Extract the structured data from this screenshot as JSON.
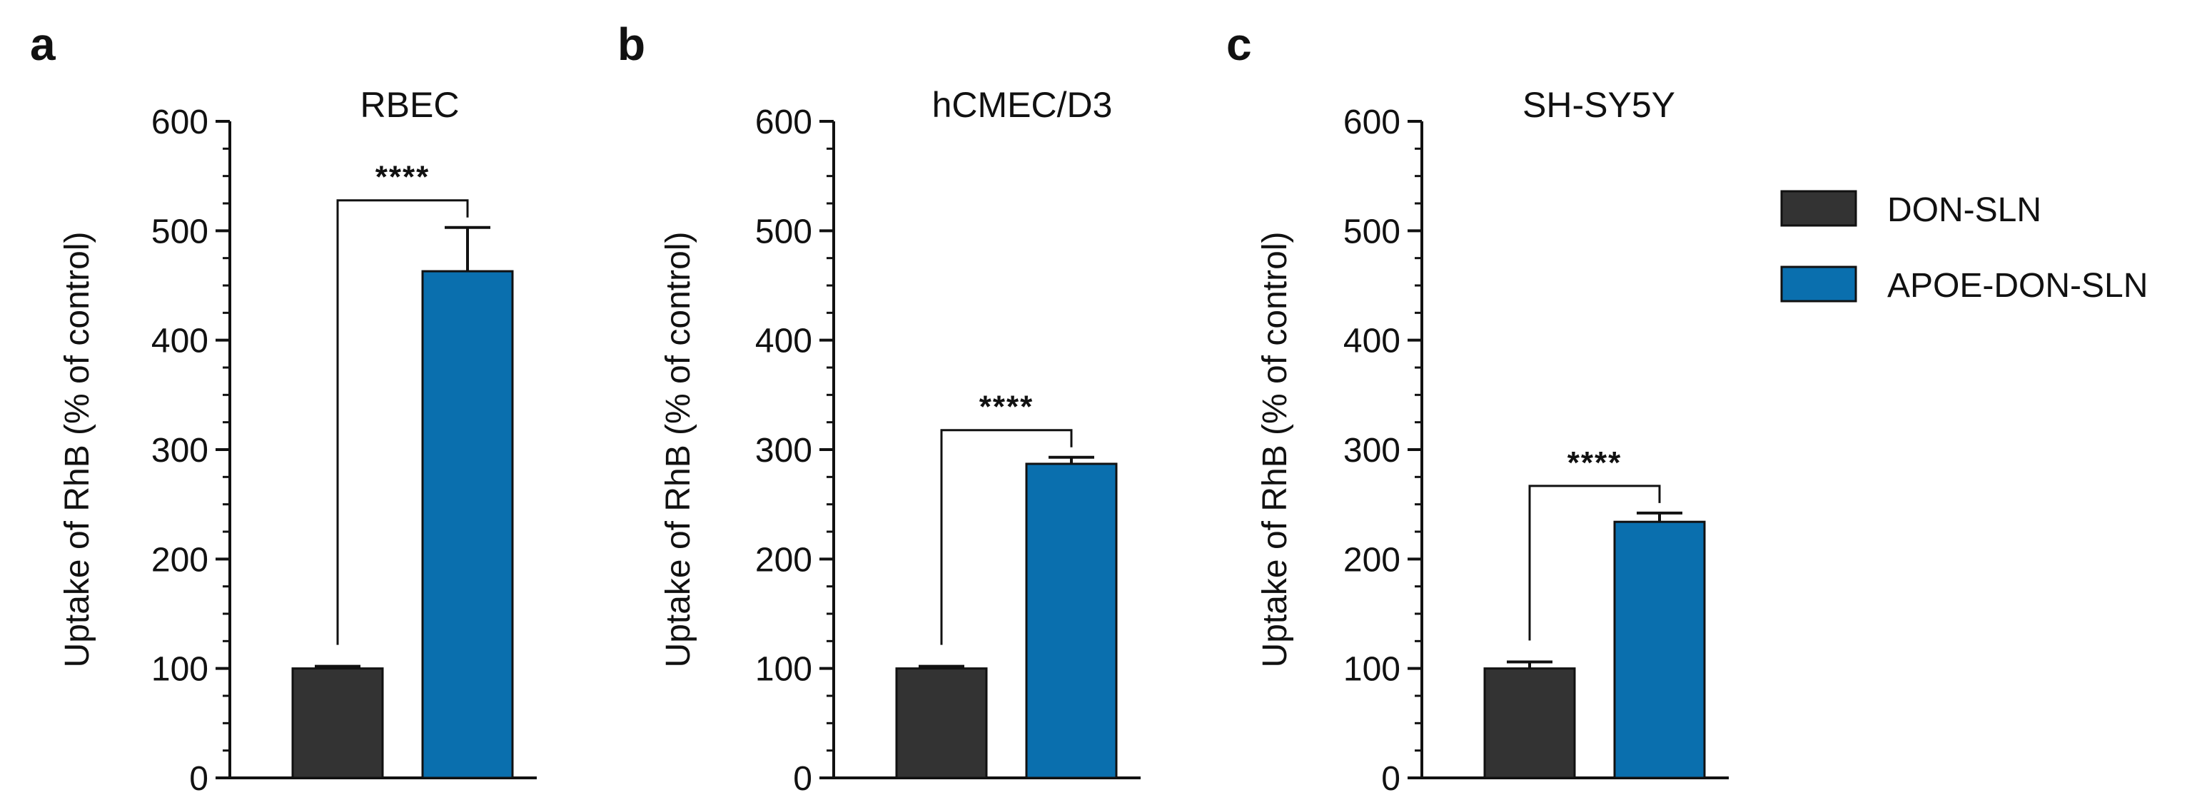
{
  "chart_data": [
    {
      "type": "bar",
      "panel": "a",
      "title": "RBEC",
      "ylabel": "Uptake of RhB (% of control)",
      "ylim": [
        0,
        600
      ],
      "yticks": [
        0,
        100,
        200,
        300,
        400,
        500,
        600
      ],
      "categories": [
        "DON-SLN",
        "APOE-DON-SLN"
      ],
      "values": [
        100,
        463
      ],
      "errors": [
        2,
        40
      ],
      "significance": "****"
    },
    {
      "type": "bar",
      "panel": "b",
      "title": "hCMEC/D3",
      "ylabel": "Uptake of RhB (% of control)",
      "ylim": [
        0,
        600
      ],
      "yticks": [
        0,
        100,
        200,
        300,
        400,
        500,
        600
      ],
      "categories": [
        "DON-SLN",
        "APOE-DON-SLN"
      ],
      "values": [
        100,
        287
      ],
      "errors": [
        2,
        6
      ],
      "significance": "****"
    },
    {
      "type": "bar",
      "panel": "c",
      "title": "SH-SY5Y",
      "ylabel": "Uptake of RhB (% of control)",
      "ylim": [
        0,
        600
      ],
      "yticks": [
        0,
        100,
        200,
        300,
        400,
        500,
        600
      ],
      "categories": [
        "DON-SLN",
        "APOE-DON-SLN"
      ],
      "values": [
        100,
        234
      ],
      "errors": [
        6,
        8
      ],
      "significance": "****"
    }
  ],
  "legend": [
    {
      "label": "DON-SLN",
      "color": "#333333"
    },
    {
      "label": "APOE-DON-SLN",
      "color": "#0a6fae"
    }
  ],
  "colors": {
    "don_sln": "#333333",
    "apoe_don_sln": "#0a6fae",
    "axis": "#111111"
  }
}
